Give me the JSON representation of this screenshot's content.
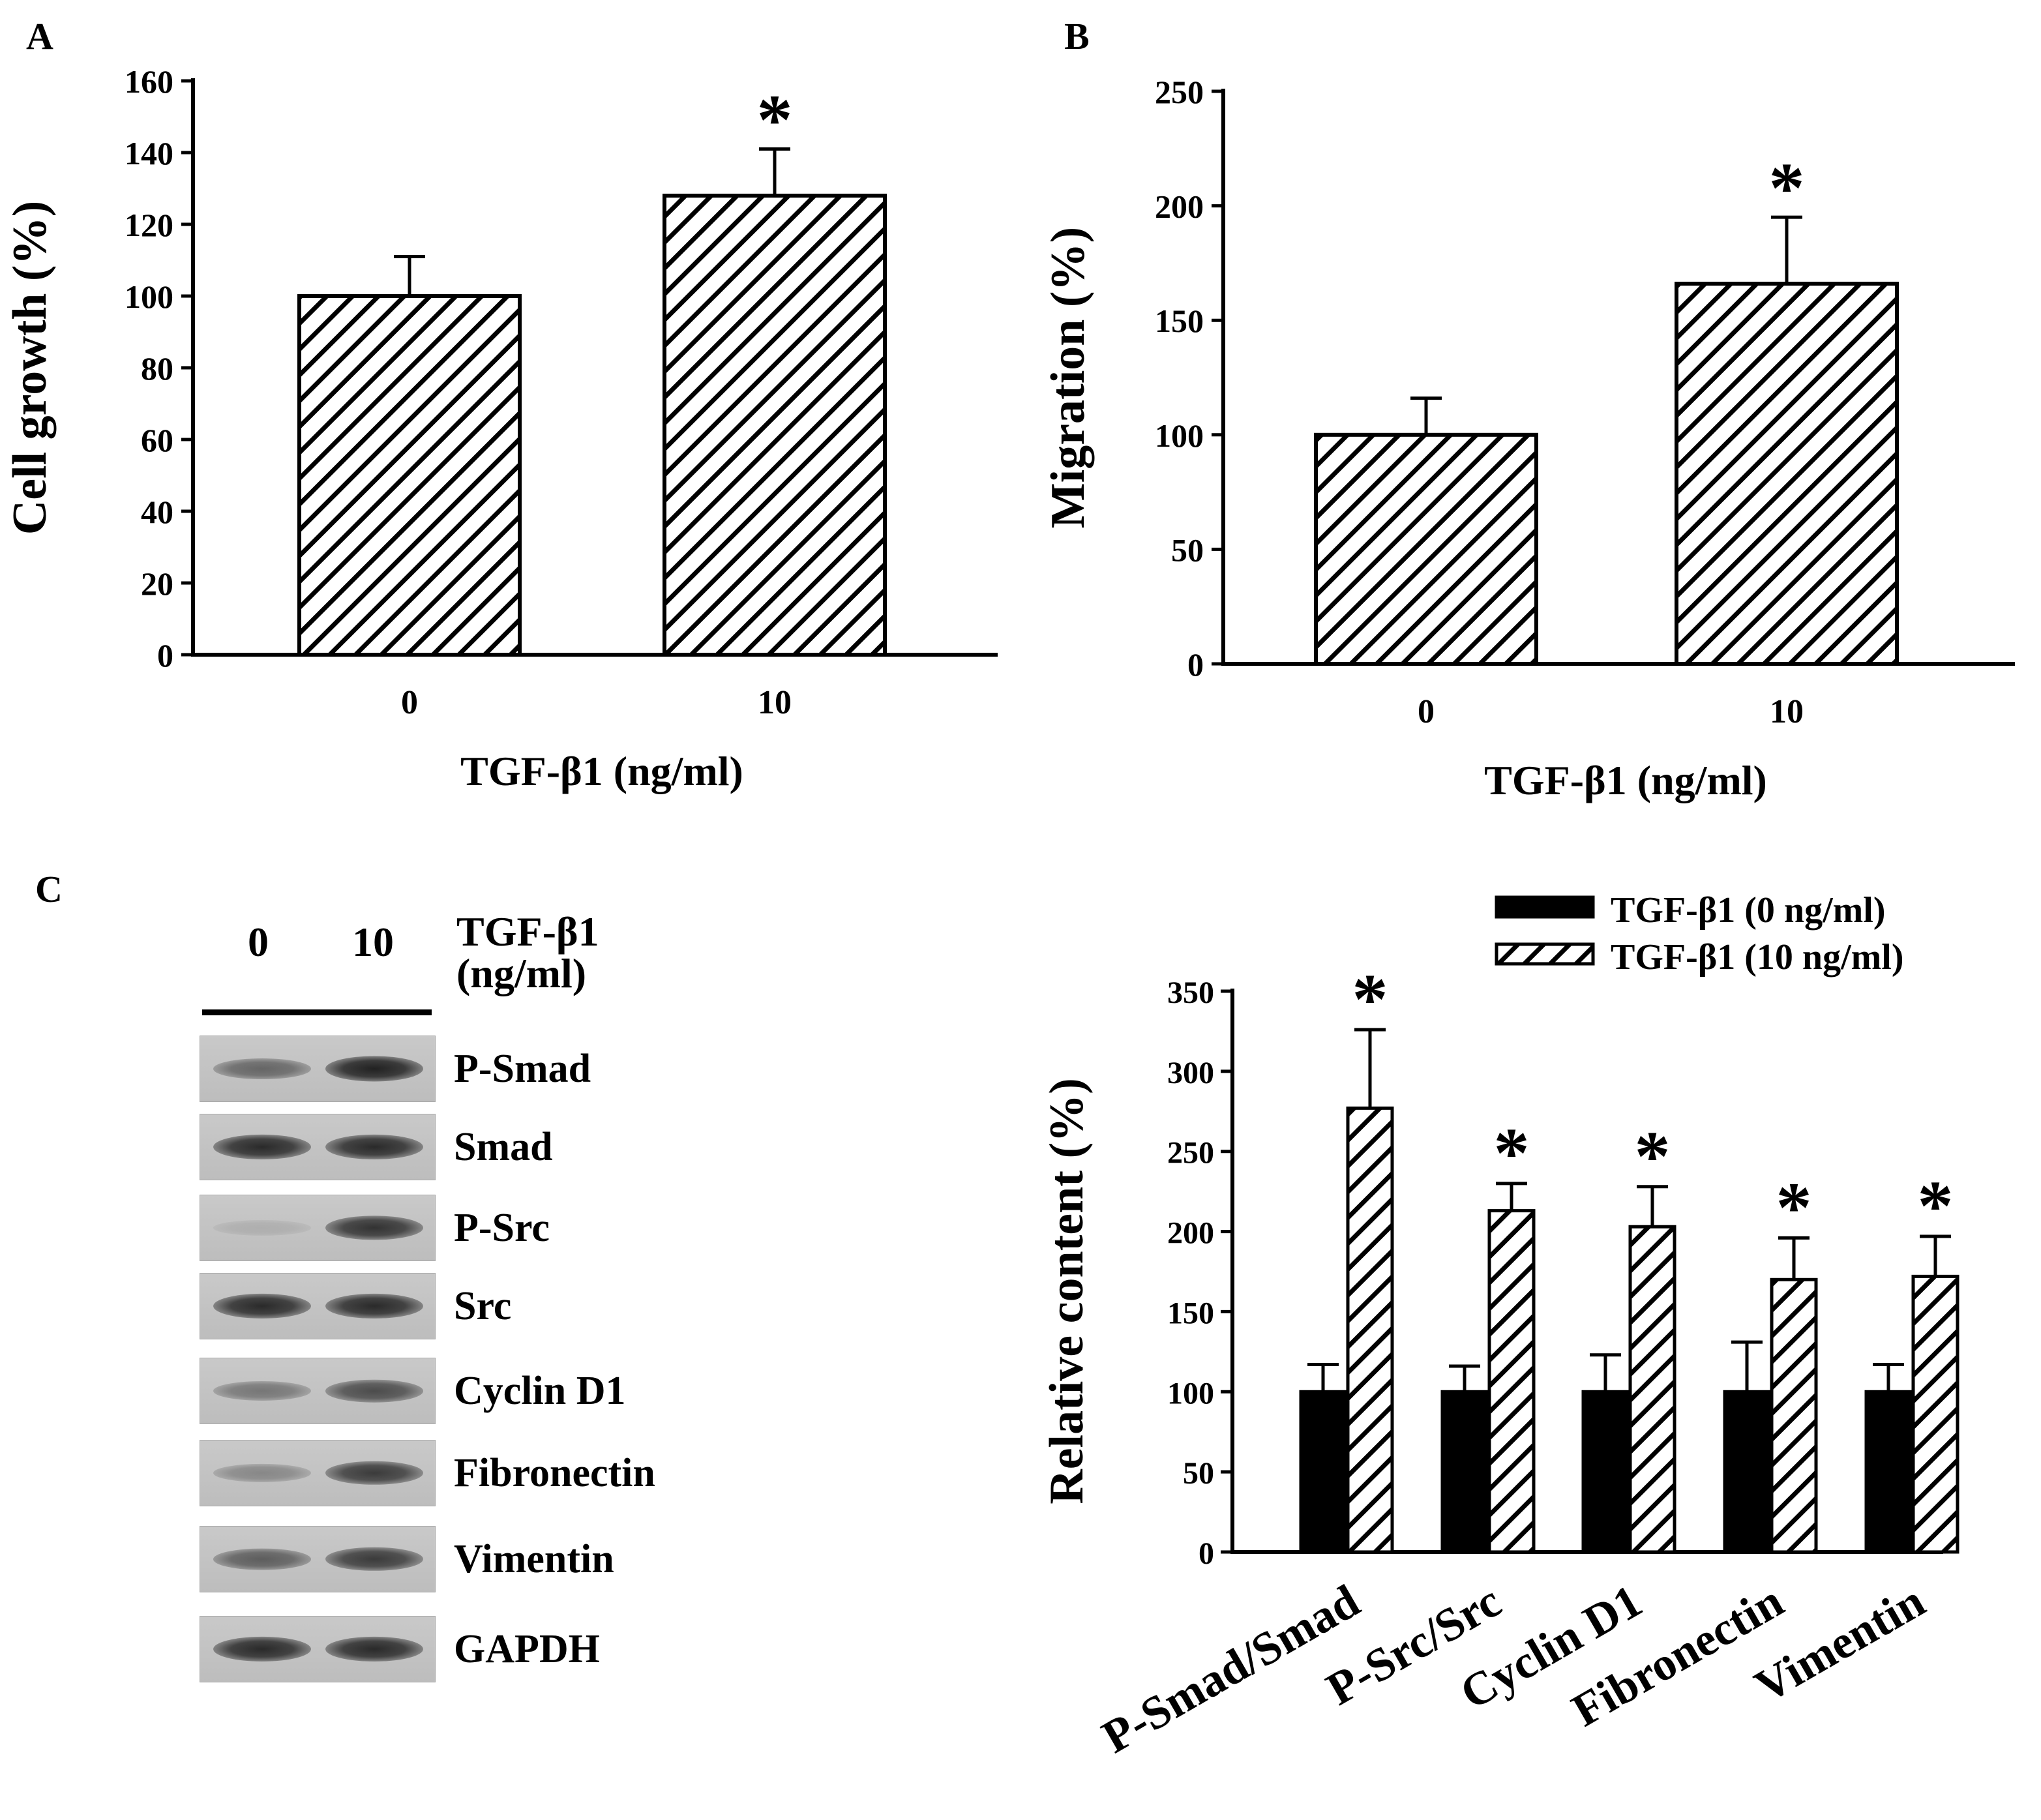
{
  "panel_labels": {
    "a": "A",
    "b": "B",
    "c": "C"
  },
  "chart_data": [
    {
      "id": "A",
      "type": "bar",
      "categories": [
        "0",
        "10"
      ],
      "values": [
        100,
        128
      ],
      "errors": [
        11,
        13
      ],
      "significance": [
        "",
        "*"
      ],
      "xlabel": "TGF-β1 (ng/ml)",
      "ylabel": "Cell growth (%)",
      "ylim": [
        0,
        160
      ],
      "yticks": [
        "0",
        "20",
        "40",
        "60",
        "80",
        "100",
        "120",
        "140",
        "160"
      ],
      "grid": false,
      "fill": "diagonal-hatch"
    },
    {
      "id": "B",
      "type": "bar",
      "categories": [
        "0",
        "10"
      ],
      "values": [
        100,
        166
      ],
      "errors": [
        16,
        29
      ],
      "significance": [
        "",
        "*"
      ],
      "xlabel": "TGF-β1 (ng/ml)",
      "ylabel": "Migration (%)",
      "ylim": [
        0,
        250
      ],
      "yticks": [
        "0",
        "50",
        "100",
        "150",
        "200",
        "250"
      ],
      "grid": false,
      "fill": "diagonal-hatch"
    },
    {
      "id": "C",
      "type": "bar",
      "categories": [
        "P-Smad/Smad",
        "P-Src/Src",
        "Cyclin D1",
        "Fibronectin",
        "Vimentin"
      ],
      "series": [
        {
          "name": "TGF-β1 (0 ng/ml)",
          "fill": "solid-black",
          "values": [
            100,
            100,
            100,
            100,
            100
          ],
          "errors": [
            17,
            16,
            23,
            31,
            17
          ]
        },
        {
          "name": "TGF-β1 (10 ng/ml)",
          "fill": "diagonal-hatch",
          "values": [
            277,
            213,
            203,
            170,
            172
          ],
          "errors": [
            49,
            17,
            25,
            26,
            25
          ]
        }
      ],
      "significance": [
        "*",
        "*",
        "*",
        "*",
        "*"
      ],
      "ylabel": "Relative content (%)",
      "ylim": [
        0,
        350
      ],
      "yticks": [
        "0",
        "50",
        "100",
        "150",
        "200",
        "250",
        "300",
        "350"
      ],
      "legend_position": "top-right",
      "grid": false
    }
  ],
  "blot": {
    "lane_labels": [
      "0",
      "10"
    ],
    "treatment_label_line1": "TGF-β1",
    "treatment_label_line2": "(ng/ml)",
    "rows": [
      {
        "label": "P-Smad",
        "intensity": [
          0.55,
          0.95
        ]
      },
      {
        "label": "Smad",
        "intensity": [
          0.9,
          0.9
        ]
      },
      {
        "label": "P-Src",
        "intensity": [
          0.12,
          0.85
        ]
      },
      {
        "label": "Src",
        "intensity": [
          0.9,
          0.9
        ]
      },
      {
        "label": "Cyclin D1",
        "intensity": [
          0.45,
          0.7
        ]
      },
      {
        "label": "Fibronectin",
        "intensity": [
          0.35,
          0.8
        ]
      },
      {
        "label": "Vimentin",
        "intensity": [
          0.6,
          0.8
        ]
      },
      {
        "label": "GAPDH",
        "intensity": [
          0.9,
          0.9
        ]
      }
    ]
  }
}
